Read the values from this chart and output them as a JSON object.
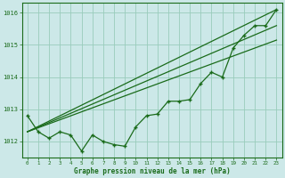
{
  "title": "Graphe pression niveau de la mer (hPa)",
  "background_color": "#cce8e8",
  "grid_color": "#99ccbb",
  "line_color": "#1a6b1a",
  "x_labels": [
    "0",
    "1",
    "2",
    "3",
    "4",
    "5",
    "6",
    "7",
    "8",
    "9",
    "10",
    "11",
    "12",
    "13",
    "14",
    "15",
    "16",
    "17",
    "18",
    "19",
    "20",
    "21",
    "22",
    "23"
  ],
  "hours": [
    0,
    1,
    2,
    3,
    4,
    5,
    6,
    7,
    8,
    9,
    10,
    11,
    12,
    13,
    14,
    15,
    16,
    17,
    18,
    19,
    20,
    21,
    22,
    23
  ],
  "main_series": [
    1012.8,
    1012.3,
    1012.1,
    1012.3,
    1012.2,
    1011.7,
    1012.2,
    1012.0,
    1011.9,
    1011.85,
    1012.45,
    1012.8,
    1012.85,
    1013.25,
    1013.25,
    1013.3,
    1013.8,
    1014.15,
    1014.0,
    1014.9,
    1015.3,
    1015.6,
    1015.6,
    1016.1
  ],
  "trend_lines": [
    [
      [
        0,
        23
      ],
      [
        1012.3,
        1016.1
      ]
    ],
    [
      [
        0,
        23
      ],
      [
        1012.3,
        1015.6
      ]
    ],
    [
      [
        0,
        23
      ],
      [
        1012.3,
        1015.15
      ]
    ]
  ],
  "ylim": [
    1011.5,
    1016.3
  ],
  "yticks": [
    1012,
    1013,
    1014,
    1015,
    1016
  ],
  "figwidth": 3.2,
  "figheight": 2.0,
  "dpi": 100
}
